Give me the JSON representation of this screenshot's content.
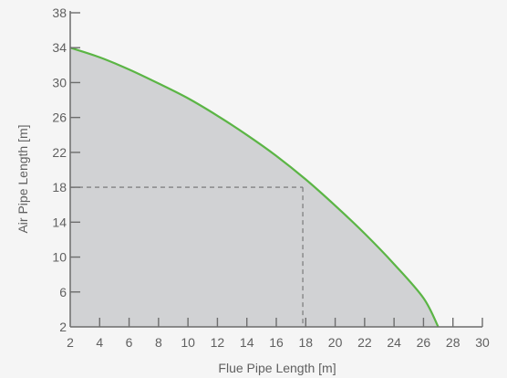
{
  "chart_data": {
    "type": "area",
    "title": "",
    "xlabel": "Flue Pipe Length [m]",
    "ylabel": "Air Pipe Length [m]",
    "xlim": [
      2,
      30
    ],
    "ylim": [
      2,
      38
    ],
    "x_ticks": [
      2,
      4,
      6,
      8,
      10,
      12,
      14,
      16,
      18,
      20,
      22,
      24,
      26,
      28,
      30
    ],
    "y_ticks": [
      2,
      6,
      10,
      14,
      18,
      22,
      26,
      30,
      34,
      38
    ],
    "series": [
      {
        "x": [
          2,
          4,
          6,
          8,
          10,
          12,
          14,
          16,
          18,
          20,
          22,
          24,
          26,
          27
        ],
        "y": [
          34,
          32.9,
          31.5,
          29.9,
          28.2,
          26.2,
          24.0,
          21.6,
          18.9,
          15.9,
          12.7,
          9.2,
          5.3,
          2
        ],
        "line_color": "#5bb545",
        "fill_color": "#d1d2d4"
      }
    ],
    "reference_point": {
      "x": 17.8,
      "y": 18
    },
    "grid": false,
    "colors": {
      "background": "#f5f5f5",
      "axis": "#6d6d6d",
      "text": "#606060",
      "reference_line": "#707070"
    }
  }
}
